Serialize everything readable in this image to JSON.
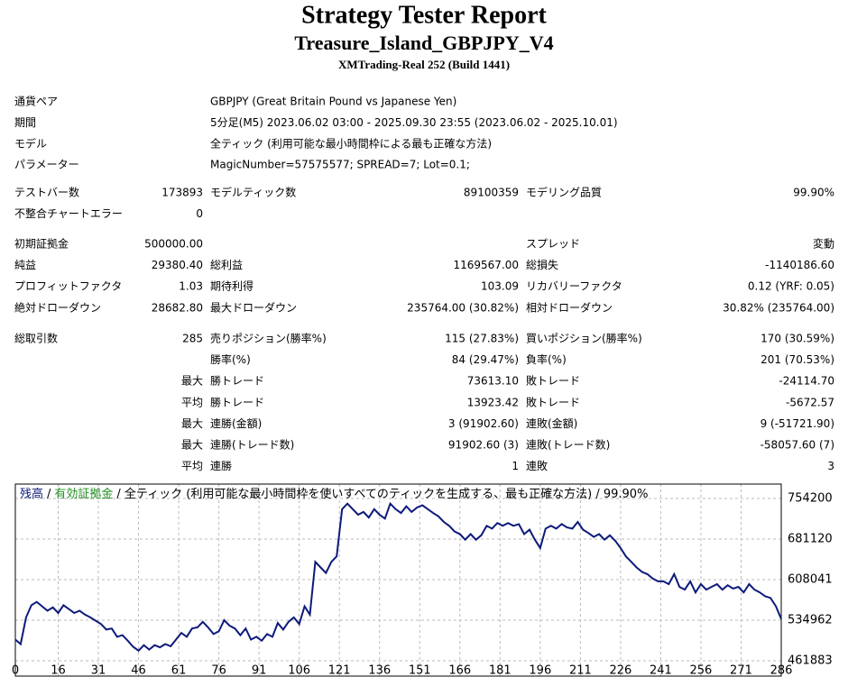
{
  "header": {
    "title": "Strategy Tester Report",
    "subtitle": "Treasure_Island_GBPJPY_V4",
    "build": "XMTrading-Real 252 (Build 1441)"
  },
  "info": [
    {
      "label": "通貨ペア",
      "value": "GBPJPY (Great Britain Pound vs Japanese Yen)"
    },
    {
      "label": "期間",
      "value": "5分足(M5) 2023.06.02 03:00 - 2025.09.30 23:55 (2023.06.02 - 2025.10.01)"
    },
    {
      "label": "モデル",
      "value": "全ティック (利用可能な最小時間枠による最も正確な方法)"
    },
    {
      "label": "パラメーター",
      "value": "MagicNumber=57575577; SPREAD=7; Lot=0.1;"
    }
  ],
  "stats": [
    [
      [
        "テストバー数",
        "173893",
        "モデルティック数",
        "89100359",
        "モデリング品質",
        "99.90%"
      ],
      [
        "不整合チャートエラー",
        "0",
        null,
        null,
        null,
        null
      ]
    ],
    [
      [
        "初期証拠金",
        "500000.00",
        null,
        null,
        "スプレッド",
        "変動"
      ],
      [
        "純益",
        "29380.40",
        "総利益",
        "1169567.00",
        "総損失",
        "-1140186.60"
      ],
      [
        "プロフィットファクタ",
        "1.03",
        "期待利得",
        "103.09",
        "リカバリーファクタ",
        "0.12 (YRF: 0.05)"
      ],
      [
        "絶対ドローダウン",
        "28682.80",
        "最大ドローダウン",
        "235764.00 (30.82%)",
        "相対ドローダウン",
        "30.82% (235764.00)"
      ]
    ],
    [
      [
        "総取引数",
        "285",
        "売りポジション(勝率%)",
        "115 (27.83%)",
        "買いポジション(勝率%)",
        "170 (30.59%)"
      ],
      [
        null,
        null,
        "勝率(%)",
        "84 (29.47%)",
        "負率(%)",
        "201 (70.53%)"
      ],
      [
        null,
        "最大",
        "勝トレード",
        "73613.10",
        "敗トレード",
        "-24114.70"
      ],
      [
        null,
        "平均",
        "勝トレード",
        "13923.42",
        "敗トレード",
        "-5672.57"
      ],
      [
        null,
        "最大",
        "連勝(金額)",
        "3 (91902.60)",
        "連敗(金額)",
        "9 (-51721.90)"
      ],
      [
        null,
        "最大",
        "連勝(トレード数)",
        "91902.60 (3)",
        "連敗(トレード数)",
        "-58057.60 (7)"
      ],
      [
        null,
        "平均",
        "連勝",
        "1",
        "連敗",
        "3"
      ]
    ]
  ],
  "chart_data": {
    "type": "line",
    "legend_separator": "/",
    "legend_note": "/ 全ティック (利用可能な最小時間枠を使いすべてのティックを生成する、最も正確な方法) / 99.90%",
    "x": [
      0,
      2,
      4,
      6,
      8,
      10,
      12,
      14,
      16,
      18,
      20,
      22,
      24,
      26,
      28,
      30,
      32,
      34,
      36,
      38,
      40,
      42,
      44,
      46,
      48,
      50,
      52,
      54,
      56,
      58,
      60,
      62,
      64,
      66,
      68,
      70,
      72,
      74,
      76,
      78,
      80,
      82,
      84,
      86,
      88,
      90,
      92,
      94,
      96,
      98,
      100,
      102,
      104,
      106,
      108,
      110,
      112,
      114,
      116,
      118,
      120,
      122,
      124,
      126,
      128,
      130,
      132,
      134,
      136,
      138,
      140,
      142,
      144,
      146,
      148,
      150,
      152,
      154,
      156,
      158,
      160,
      162,
      164,
      166,
      168,
      170,
      172,
      174,
      176,
      178,
      180,
      182,
      184,
      186,
      188,
      190,
      192,
      194,
      196,
      198,
      200,
      202,
      204,
      206,
      208,
      210,
      212,
      214,
      216,
      218,
      220,
      222,
      224,
      226,
      228,
      230,
      232,
      234,
      236,
      238,
      240,
      242,
      244,
      246,
      248,
      250,
      252,
      254,
      256,
      258,
      260,
      262,
      264,
      266,
      268,
      270,
      272,
      274,
      276,
      278,
      280,
      282,
      284,
      286
    ],
    "series": [
      {
        "name": "残高",
        "color": "#0d1a7a",
        "values": [
          500000,
          492000,
          540000,
          562000,
          568000,
          560000,
          552000,
          558000,
          548000,
          562000,
          555000,
          548000,
          552000,
          545000,
          540000,
          534000,
          528000,
          518000,
          520000,
          505000,
          508000,
          498000,
          487000,
          480000,
          490000,
          482000,
          490000,
          486000,
          492000,
          488000,
          500000,
          512000,
          505000,
          520000,
          522000,
          532000,
          522000,
          510000,
          515000,
          535000,
          525000,
          520000,
          508000,
          520000,
          500000,
          505000,
          498000,
          510000,
          505000,
          530000,
          518000,
          532000,
          540000,
          528000,
          560000,
          545000,
          640000,
          630000,
          620000,
          640000,
          650000,
          735000,
          745000,
          735000,
          725000,
          730000,
          720000,
          735000,
          725000,
          718000,
          745000,
          735000,
          728000,
          740000,
          730000,
          738000,
          742000,
          735000,
          728000,
          722000,
          712000,
          705000,
          695000,
          690000,
          680000,
          690000,
          680000,
          688000,
          705000,
          700000,
          710000,
          705000,
          710000,
          705000,
          708000,
          690000,
          698000,
          680000,
          665000,
          700000,
          705000,
          700000,
          708000,
          702000,
          700000,
          712000,
          698000,
          692000,
          685000,
          690000,
          680000,
          688000,
          678000,
          665000,
          650000,
          640000,
          630000,
          622000,
          618000,
          610000,
          605000,
          605000,
          600000,
          618000,
          595000,
          590000,
          605000,
          585000,
          600000,
          590000,
          595000,
          600000,
          590000,
          598000,
          592000,
          595000,
          585000,
          600000,
          590000,
          585000,
          578000,
          575000,
          560000,
          537000
        ]
      },
      {
        "name": "有効証拠金",
        "color": "#1e8c1e"
      }
    ],
    "xlim": [
      0,
      286
    ],
    "xticks": [
      0,
      16,
      31,
      46,
      61,
      76,
      91,
      106,
      121,
      136,
      151,
      166,
      181,
      196,
      211,
      226,
      241,
      256,
      271,
      286
    ],
    "ylim": [
      434275,
      780180
    ],
    "yticks": [
      461883,
      534962,
      608041,
      681120,
      754200
    ],
    "grid": true
  }
}
